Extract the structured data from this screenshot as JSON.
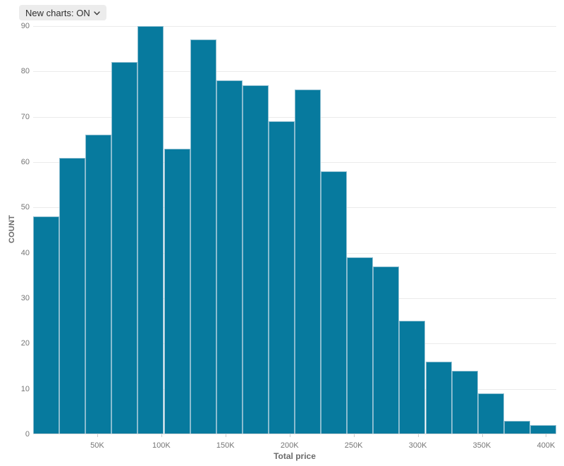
{
  "controls": {
    "new_charts_toggle": {
      "label": "New charts: ON",
      "icon": "chevron-down",
      "state": "ON"
    }
  },
  "chart_data": {
    "type": "bar",
    "chart_kind": "histogram",
    "title": "",
    "xlabel": "Total price",
    "ylabel": "COUNT",
    "xlim": [
      0,
      408000
    ],
    "ylim": [
      0,
      90
    ],
    "n_bins": 20,
    "bin_width_approx": 20400,
    "values": [
      48,
      61,
      66,
      82,
      90,
      63,
      87,
      78,
      77,
      69,
      76,
      58,
      39,
      37,
      25,
      16,
      14,
      9,
      3,
      2
    ],
    "x_ticks": [
      {
        "value": 50000,
        "label": "50K"
      },
      {
        "value": 100000,
        "label": "100K"
      },
      {
        "value": 150000,
        "label": "150K"
      },
      {
        "value": 200000,
        "label": "200K"
      },
      {
        "value": 250000,
        "label": "250K"
      },
      {
        "value": 300000,
        "label": "300K"
      },
      {
        "value": 350000,
        "label": "350K"
      },
      {
        "value": 400000,
        "label": "400K"
      }
    ],
    "y_ticks": [
      0,
      10,
      20,
      30,
      40,
      50,
      60,
      70,
      80,
      90
    ],
    "grid": "horizontal",
    "legend": "none",
    "colors": {
      "bar_fill": "#077a9e",
      "bar_stroke": "#8abccf",
      "gridline": "#ebebeb",
      "axis_line": "#d9d9d9",
      "tick_mark": "#cccccc",
      "tick_text": "#757575",
      "axis_title_text": "#6b6b6b",
      "pill_background": "#ececec",
      "pill_text": "#2f2f2f"
    }
  }
}
